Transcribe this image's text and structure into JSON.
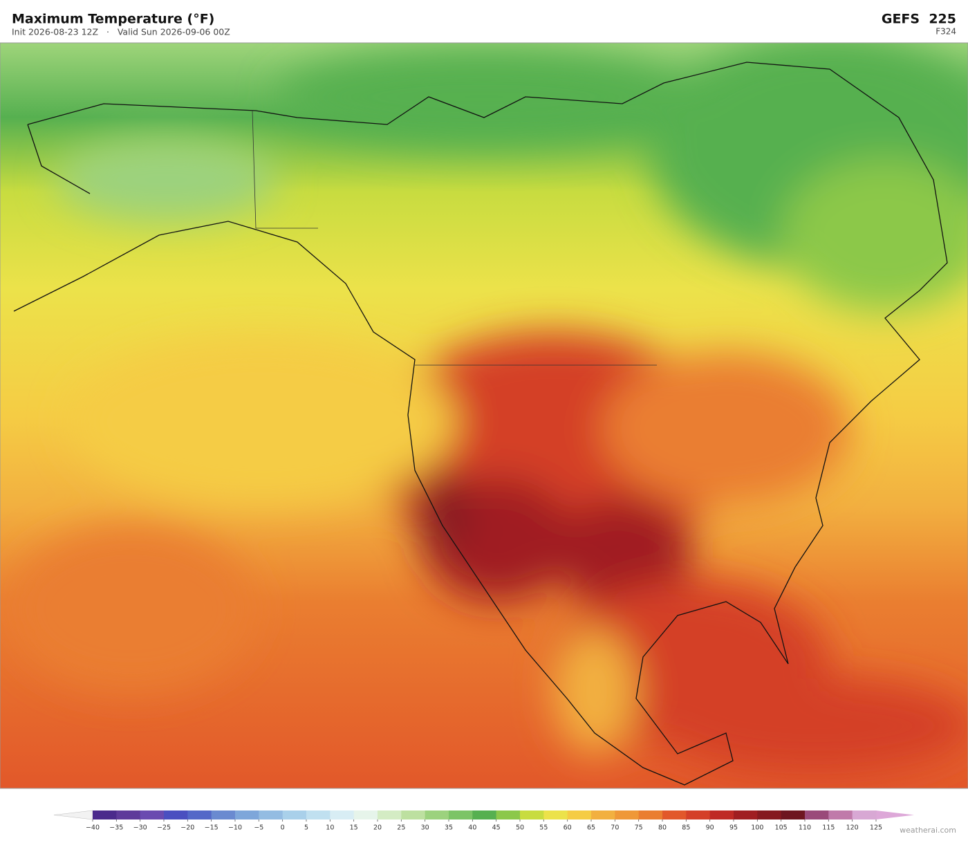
{
  "header": {
    "title": "Maximum Temperature  (°F)",
    "subtitle": "Init 2026-08-23 12Z   ·   Valid Sun 2026-09-06 00Z",
    "model": "GEFS  225",
    "forecast_hour": "F324"
  },
  "colorbar": {
    "ticks": [
      {
        "value": -40,
        "label": "−40"
      },
      {
        "value": -35,
        "label": "−35"
      },
      {
        "value": -30,
        "label": "−30"
      },
      {
        "value": -25,
        "label": "−25"
      },
      {
        "value": -20,
        "label": "−20"
      },
      {
        "value": -15,
        "label": "−15"
      },
      {
        "value": -10,
        "label": "−10"
      },
      {
        "value": -5,
        "label": "−5"
      },
      0,
      5,
      10,
      15,
      20,
      25,
      30,
      35,
      40,
      45,
      50,
      55,
      60,
      65,
      70,
      75,
      80,
      85,
      90,
      95,
      100,
      105,
      110,
      115,
      120,
      125
    ],
    "colors": [
      "#4b2a8c",
      "#5e3a9a",
      "#6a4bb0",
      "#4a4fc0",
      "#5468c8",
      "#6a8ad0",
      "#7ea6da",
      "#94bce2",
      "#a9d0ea",
      "#c0e0f0",
      "#d8edf4",
      "#e6f4ea",
      "#d4ecc4",
      "#bde0a0",
      "#9cd27e",
      "#7cc466",
      "#56b050",
      "#8cc84a",
      "#c8dc40",
      "#ece24a",
      "#f5cc44",
      "#f2b040",
      "#ef9838",
      "#ea7e30",
      "#e2582a",
      "#d44028",
      "#bf2a26",
      "#a01e22",
      "#861a20",
      "#6e1620",
      "#9a4a7a",
      "#c07aaa",
      "#d8a8d4"
    ],
    "under_color": "#f2f2f2",
    "over_color": "#dda8d8"
  },
  "watermark": "weatherai.com"
}
